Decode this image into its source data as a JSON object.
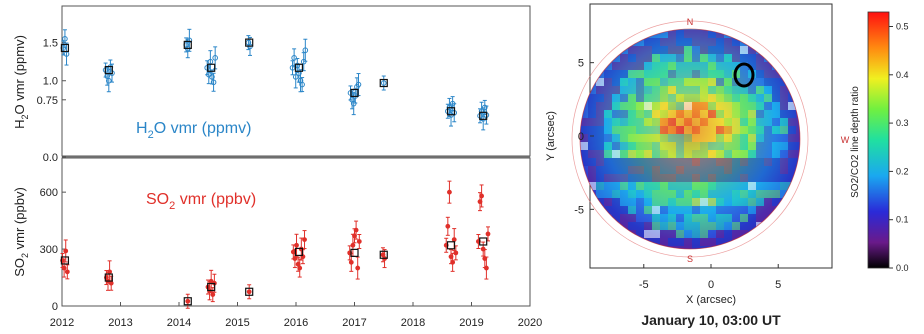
{
  "chart_data": [
    {
      "type": "scatter",
      "panel": "top",
      "ylabel": "H2O vmr (ppmv)",
      "ylabel_html": [
        "H",
        "2",
        "O vmr (ppmv)"
      ],
      "annotation": [
        "H",
        "2",
        "O vmr (ppmv)"
      ],
      "yticks": [
        "1.5",
        "1.0",
        "0.75",
        "0.0"
      ],
      "ytick_values": [
        1.5,
        1.0,
        0.75,
        0.0
      ],
      "ylim": [
        0.0,
        1.98
      ],
      "xlim": [
        2012,
        2020
      ],
      "series_color": "#2b86c8",
      "points_mean": [
        {
          "x": 2012.05,
          "y": 1.43
        },
        {
          "x": 2012.8,
          "y": 1.14
        },
        {
          "x": 2014.15,
          "y": 1.47
        },
        {
          "x": 2014.55,
          "y": 1.17
        },
        {
          "x": 2015.2,
          "y": 1.5
        },
        {
          "x": 2016.05,
          "y": 1.17
        },
        {
          "x": 2017.0,
          "y": 0.84
        },
        {
          "x": 2017.5,
          "y": 0.97
        },
        {
          "x": 2018.65,
          "y": 0.6
        },
        {
          "x": 2019.2,
          "y": 0.54
        }
      ],
      "clusters": [
        {
          "x": 2012.05,
          "ys": [
            1.43,
            1.55,
            1.35
          ]
        },
        {
          "x": 2012.8,
          "ys": [
            1.14,
            1.06,
            1.0,
            1.18,
            1.1
          ]
        },
        {
          "x": 2014.15,
          "ys": [
            1.47,
            1.42,
            1.53
          ]
        },
        {
          "x": 2014.55,
          "ys": [
            1.17,
            1.08,
            1.25,
            1.05,
            0.98,
            1.3
          ]
        },
        {
          "x": 2015.2,
          "ys": [
            1.5,
            1.45
          ]
        },
        {
          "x": 2016.05,
          "ys": [
            1.17,
            1.3,
            1.05,
            1.2,
            1.1,
            1.0,
            0.95,
            1.25,
            1.4
          ]
        },
        {
          "x": 2017.0,
          "ys": [
            0.84,
            0.75,
            0.7,
            0.8,
            0.92,
            0.95
          ]
        },
        {
          "x": 2017.5,
          "ys": [
            0.97
          ]
        },
        {
          "x": 2018.65,
          "ys": [
            0.6,
            0.65,
            0.55,
            0.7,
            0.58
          ]
        },
        {
          "x": 2019.2,
          "ys": [
            0.54,
            0.6,
            0.5,
            0.65,
            0.55
          ]
        }
      ]
    },
    {
      "type": "scatter",
      "panel": "bottom",
      "ylabel": "SO2 vmr (ppbv)",
      "ylabel_html": [
        "SO",
        "2",
        " vmr (ppbv)"
      ],
      "annotation": [
        "SO",
        "2",
        " vmr (ppbv)"
      ],
      "yticks": [
        "600",
        "300",
        "0"
      ],
      "ytick_values": [
        600,
        300,
        0
      ],
      "ylim": [
        0,
        780
      ],
      "xlim": [
        2012,
        2020
      ],
      "series_color": "#e0302a",
      "xticks": [
        "2012",
        "2013",
        "2014",
        "2015",
        "2016",
        "2017",
        "2018",
        "2019",
        "2020"
      ],
      "points_mean": [
        {
          "x": 2012.05,
          "y": 240
        },
        {
          "x": 2012.8,
          "y": 150
        },
        {
          "x": 2014.15,
          "y": 25
        },
        {
          "x": 2014.55,
          "y": 100
        },
        {
          "x": 2015.2,
          "y": 75
        },
        {
          "x": 2016.05,
          "y": 285
        },
        {
          "x": 2017.0,
          "y": 280
        },
        {
          "x": 2017.5,
          "y": 270
        },
        {
          "x": 2018.65,
          "y": 320
        },
        {
          "x": 2019.2,
          "y": 340
        }
      ],
      "clusters": [
        {
          "x": 2012.05,
          "ys": [
            240,
            200,
            290,
            180
          ]
        },
        {
          "x": 2012.8,
          "ys": [
            150,
            130,
            180,
            120
          ]
        },
        {
          "x": 2014.15,
          "ys": [
            25
          ]
        },
        {
          "x": 2014.55,
          "ys": [
            100,
            80,
            130,
            60,
            120
          ]
        },
        {
          "x": 2015.2,
          "ys": [
            75
          ]
        },
        {
          "x": 2016.05,
          "ys": [
            285,
            250,
            320,
            220,
            200,
            300,
            260,
            350
          ]
        },
        {
          "x": 2017.0,
          "ys": [
            280,
            230,
            320,
            370,
            400,
            200,
            340
          ]
        },
        {
          "x": 2017.5,
          "ys": [
            270,
            250
          ]
        },
        {
          "x": 2018.65,
          "ys": [
            320,
            420,
            600,
            260,
            230,
            350,
            280
          ]
        },
        {
          "x": 2019.2,
          "ys": [
            340,
            550,
            580,
            300,
            250,
            200,
            380
          ]
        }
      ]
    },
    {
      "type": "heatmap",
      "panel": "map",
      "xlabel": "X (arcsec)",
      "ylabel": "Y (arcsec)",
      "xticks": [
        "-5",
        "0",
        "5"
      ],
      "xtick_values": [
        -5,
        0,
        5
      ],
      "yticks": [
        "5",
        "0",
        "-5"
      ],
      "ytick_values": [
        5,
        0,
        -5
      ],
      "xlim": [
        -9,
        9
      ],
      "ylim": [
        -9,
        9
      ],
      "disk_labels": {
        "north": "N",
        "west": "W",
        "south": "S"
      },
      "caption": "January 10, 03:00 UT",
      "colorbar": {
        "label": "SO2/CO2 line depth ratio",
        "ticks": [
          "0.5",
          "0.4",
          "0.3",
          "0.2",
          "0.1",
          "0.0"
        ],
        "tick_values": [
          0.5,
          0.4,
          0.3,
          0.2,
          0.1,
          0.0
        ],
        "range": [
          0.0,
          0.53
        ]
      }
    }
  ]
}
